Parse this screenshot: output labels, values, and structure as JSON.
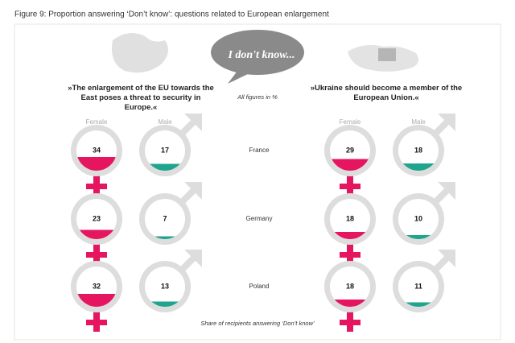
{
  "chart_data": {
    "type": "pictogram",
    "title": "Figure 9: Proportion answering ‘Don’t know’: questions related to European enlargement",
    "bubble": "I don't know...",
    "subtitle": "All figures in %",
    "note": "Share of recipients answering ‘Don’t know’",
    "categories": [
      "France",
      "Germany",
      "Poland"
    ],
    "ylim": [
      0,
      100
    ],
    "panels": [
      {
        "title": "»The enlargement of the EU towards the East poses a threat to security in Europe.«",
        "series": [
          {
            "name": "Female",
            "color": "#e5155f",
            "values": [
              34,
              23,
              32
            ]
          },
          {
            "name": "Male",
            "color": "#1fa48e",
            "values": [
              17,
              7,
              13
            ]
          }
        ]
      },
      {
        "title": "»Ukraine should become a member of the European Union.«",
        "series": [
          {
            "name": "Female",
            "color": "#e5155f",
            "values": [
              29,
              18,
              18
            ]
          },
          {
            "name": "Male",
            "color": "#1fa48e",
            "values": [
              18,
              10,
              11
            ]
          }
        ]
      }
    ]
  }
}
